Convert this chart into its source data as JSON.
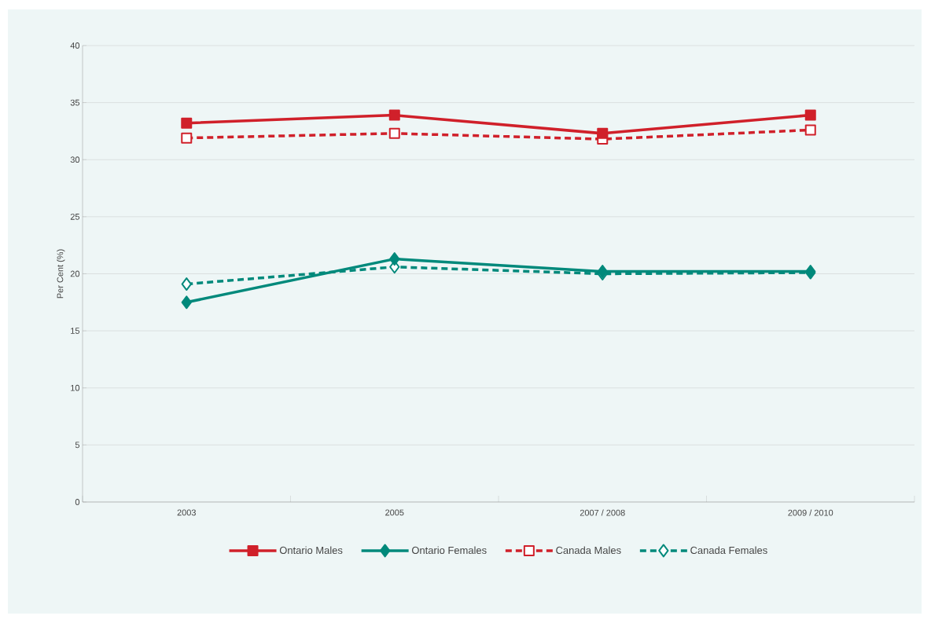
{
  "chart_data": {
    "type": "line",
    "ylabel": "Per Cent (%)",
    "categories": [
      "2003",
      "2005",
      "2007 / 2008",
      "2009 / 2010"
    ],
    "ylim": [
      0,
      40
    ],
    "yticks": [
      0,
      5,
      10,
      15,
      20,
      25,
      30,
      35,
      40
    ],
    "grid": "y",
    "legend": "bottom",
    "series": [
      {
        "name": "Ontario Males",
        "color": "#d0202a",
        "marker": "square",
        "line_style": "solid",
        "values": [
          33.2,
          33.9,
          32.3,
          33.9
        ]
      },
      {
        "name": "Ontario Females",
        "color": "#00897b",
        "marker": "diamond",
        "line_style": "solid",
        "values": [
          17.5,
          21.3,
          20.2,
          20.2
        ]
      },
      {
        "name": "Canada Males",
        "color": "#d0202a",
        "marker": "square",
        "line_style": "dashed",
        "values": [
          31.9,
          32.3,
          31.8,
          32.6
        ]
      },
      {
        "name": "Canada Females",
        "color": "#00897b",
        "marker": "diamond",
        "line_style": "dashed",
        "values": [
          19.1,
          20.6,
          20.0,
          20.1
        ]
      }
    ]
  }
}
